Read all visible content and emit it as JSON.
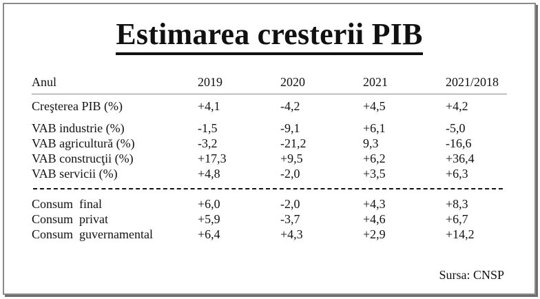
{
  "title": "Estimarea cresterii PIB",
  "header": {
    "label": "Anul",
    "years": [
      "2019",
      "2020",
      "2021",
      "2021/2018"
    ]
  },
  "groups": [
    [
      {
        "label": "Creşterea PIB (%)",
        "values": [
          "+4,1",
          "-4,2",
          "+4,5",
          "+4,2"
        ]
      }
    ],
    [
      {
        "label": "VAB industrie (%)",
        "values": [
          "-1,5",
          "-9,1",
          "+6,1",
          "-5,0"
        ]
      },
      {
        "label": "VAB agricultură (%)",
        "values": [
          "-3,2",
          "-21,2",
          "9,3",
          "-16,6"
        ]
      },
      {
        "label": "VAB construcţii (%)",
        "values": [
          "+17,3",
          "+9,5",
          "+6,2",
          "+36,4"
        ]
      },
      {
        "label": "VAB servicii (%)",
        "values": [
          "+4,8",
          "-2,0",
          "+3,5",
          "+6,3"
        ]
      }
    ],
    [
      {
        "label": "Consum  final",
        "values": [
          "+6,0",
          "-2,0",
          "+4,3",
          "+8,3"
        ]
      },
      {
        "label": "Consum  privat",
        "values": [
          "+5,9",
          "-3,7",
          "+4,6",
          "+6,7"
        ]
      },
      {
        "label": "Consum  guvernamental",
        "values": [
          "+6,4",
          "+4,3",
          "+2,9",
          "+14,2"
        ]
      }
    ]
  ],
  "source": "Sursa: CNSP"
}
